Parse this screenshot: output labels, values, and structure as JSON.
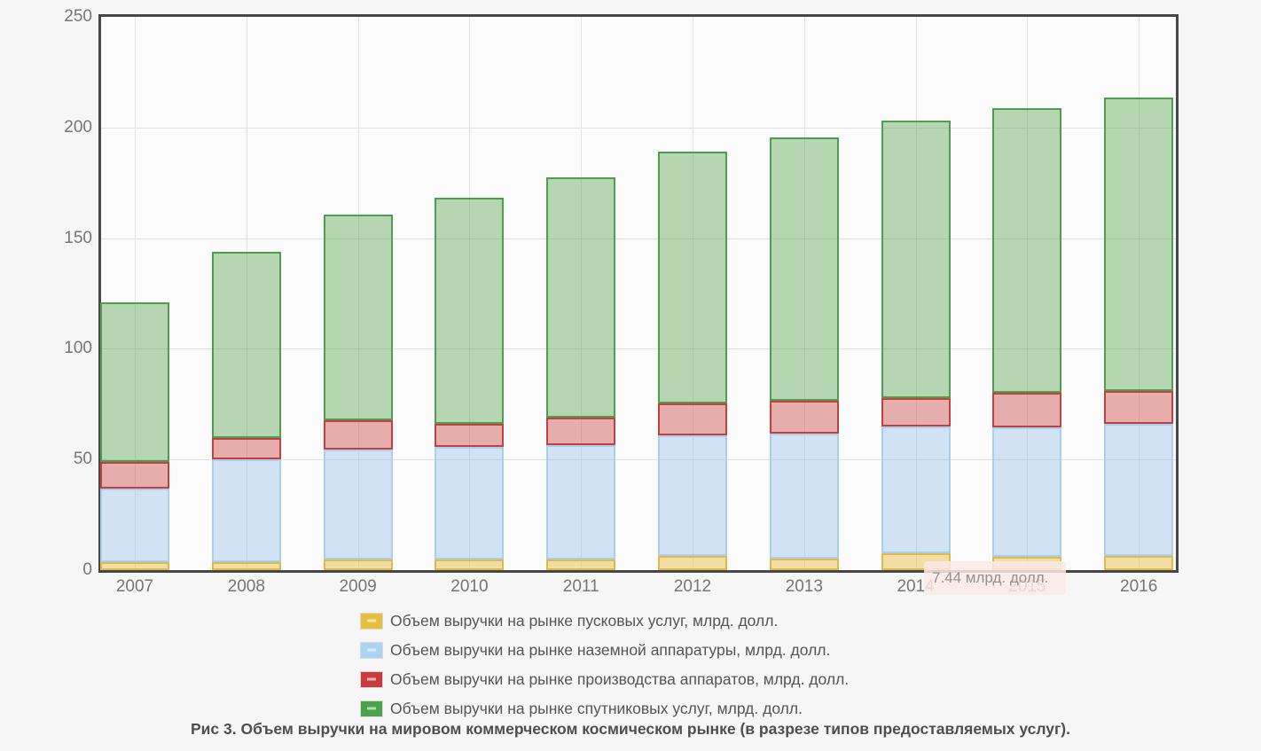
{
  "page": {
    "background": "#f6f6f6"
  },
  "chart_data": {
    "type": "bar",
    "stacked": true,
    "title": "",
    "xlabel": "",
    "ylabel": "",
    "ylim": [
      0,
      250
    ],
    "yticks": [
      0,
      50,
      100,
      150,
      200,
      250
    ],
    "grid": true,
    "legend_position": "bottom",
    "categories": [
      "2007",
      "2008",
      "2009",
      "2010",
      "2011",
      "2012",
      "2013",
      "2014",
      "2015",
      "2016"
    ],
    "series": [
      {
        "name": "Объем выручки на рынке пусковых услуг, млрд. долл.",
        "fill": "rgba(230,185,60,0.45)",
        "border": "#e0b94b",
        "values": [
          3.5,
          3.7,
          4.8,
          4.8,
          4.8,
          6.3,
          5.2,
          7.44,
          6.2,
          6.3
        ]
      },
      {
        "name": "Объем выручки на рынке наземной аппаратуры, млрд. долл.",
        "fill": "rgba(130,180,230,0.35)",
        "border": "#a9cfee",
        "values": [
          33.5,
          46.5,
          49.6,
          50.7,
          51.6,
          54.6,
          56.4,
          57.4,
          58.3,
          60.0
        ]
      },
      {
        "name": "Объем выручки на рынке производства аппаратов, млрд. долл.",
        "fill": "rgba(200,65,65,0.42)",
        "border": "#c4403e",
        "values": [
          12.0,
          9.6,
          13.4,
          10.5,
          12.7,
          14.4,
          15.0,
          12.9,
          15.5,
          14.7
        ]
      },
      {
        "name": "Объем выручки на рынке спутниковых услуг, млрд. долл.",
        "fill": "rgba(85,160,75,0.42)",
        "border": "#4d9e50",
        "values": [
          72.1,
          84.2,
          93.0,
          102.1,
          108.3,
          113.9,
          119.0,
          125.4,
          128.6,
          132.7
        ]
      }
    ],
    "totals": [
      121.1,
      144.0,
      160.8,
      168.1,
      177.4,
      189.2,
      195.6,
      203.1,
      208.6,
      213.7
    ]
  },
  "tooltip": {
    "text": "7.44 млрд. долл.",
    "background": "#fbe9e6"
  },
  "legend": {
    "swatch_colors": [
      "#e6bf3e",
      "#abd4f2",
      "#ca3c3c",
      "#4aa34a"
    ]
  },
  "caption": {
    "text": "Рис 3. Объем выручки на мировом коммерческом космическом рынке (в разрезе типов предоставляемых услуг)."
  }
}
